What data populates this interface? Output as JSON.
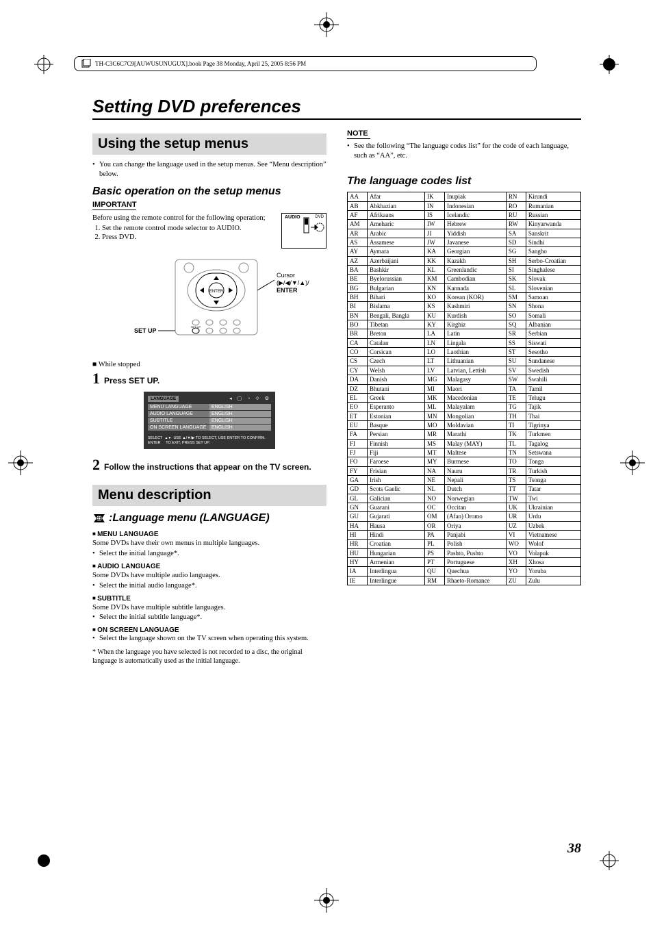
{
  "header_filename": "TH-C3C6C7C9[AUWUSUNUGUX].book  Page 38  Monday, April 25, 2005  8:56 PM",
  "page_title": "Setting DVD preferences",
  "page_number": "38",
  "left": {
    "section1_title": "Using the setup menus",
    "intro_bullet": "You can change the language used in the setup menus. See “Menu description” below.",
    "subhead_basic": "Basic operation on the setup menus",
    "important_label": "IMPORTANT",
    "before_text": "Before using the remote control for the following operation;",
    "num1": "Set the remote control mode selector to AUDIO.",
    "num2": "Press DVD.",
    "remote": {
      "audio": "AUDIO",
      "dvd": "DVD"
    },
    "diagram": {
      "setup": "SET UP",
      "cursor": "Cursor",
      "cursor_sym": "(▶/◀/▼/▲)/",
      "enter": "ENTER"
    },
    "while_stopped": "■ While stopped",
    "step1_text": "Press SET UP.",
    "menu_shot": {
      "tab": "LANGUAGE",
      "rows": [
        {
          "k": "MENU LANGUAGE",
          "v": "ENGLISH"
        },
        {
          "k": "AUDIO LANGUAGE",
          "v": "ENGLISH"
        },
        {
          "k": "SUBTITLE",
          "v": "ENGLISH"
        },
        {
          "k": "ON SCREEN LANGUAGE",
          "v": "ENGLISH"
        }
      ],
      "hint1": "SELECT",
      "hint2": "USE ▲/▼/▶ TO SELECT, USE ENTER TO CONFIRM.",
      "hint3": "ENTER",
      "hint4": "TO EXIT, PRESS SET UP."
    },
    "step2_text": "Follow the instructions that appear on the TV screen.",
    "section2_title": "Menu description",
    "lang_menu_title": ":Language menu (LANGUAGE)",
    "items": [
      {
        "h": "MENU LANGUAGE",
        "p": "Some DVDs have their own menus in multiple languages.",
        "b": "Select the initial language*."
      },
      {
        "h": "AUDIO LANGUAGE",
        "p": "Some DVDs have multiple audio languages.",
        "b": "Select the initial audio language*."
      },
      {
        "h": "SUBTITLE",
        "p": "Some DVDs have multiple subtitle languages.",
        "b": "Select the initial subtitle language*."
      },
      {
        "h": "ON SCREEN LANGUAGE",
        "p": "",
        "b": "Select the language shown on the TV screen when operating this system."
      }
    ],
    "footnote": "* When the language you have selected is not recorded to a disc, the original language is automatically used as the initial language."
  },
  "right": {
    "note_label": "NOTE",
    "note_text": "See the following “The language codes list” for the code of each language, such as “AA”, etc.",
    "list_title": "The language codes list",
    "codes": [
      [
        "AA",
        "Afar",
        "IK",
        "Inupiak",
        "RN",
        "Kirundi"
      ],
      [
        "AB",
        "Abkhazian",
        "IN",
        "Indonesian",
        "RO",
        "Rumanian"
      ],
      [
        "AF",
        "Afrikaans",
        "IS",
        "Icelandic",
        "RU",
        "Russian"
      ],
      [
        "AM",
        "Ameharic",
        "IW",
        "Hebrew",
        "RW",
        "Kinyarwanda"
      ],
      [
        "AR",
        "Arabic",
        "JI",
        "Yiddish",
        "SA",
        "Sanskrit"
      ],
      [
        "AS",
        "Assamese",
        "JW",
        "Javanese",
        "SD",
        "Sindhi"
      ],
      [
        "AY",
        "Aymara",
        "KA",
        "Georgian",
        "SG",
        "Sangho"
      ],
      [
        "AZ",
        "Azerbaijani",
        "KK",
        "Kazakh",
        "SH",
        "Serbo-Croatian"
      ],
      [
        "BA",
        "Bashkir",
        "KL",
        "Greenlandic",
        "SI",
        "Singhalese"
      ],
      [
        "BE",
        "Byelorussian",
        "KM",
        "Cambodian",
        "SK",
        "Slovak"
      ],
      [
        "BG",
        "Bulgarian",
        "KN",
        "Kannada",
        "SL",
        "Slovenian"
      ],
      [
        "BH",
        "Bihari",
        "KO",
        "Korean (KOR)",
        "SM",
        "Samoan"
      ],
      [
        "BI",
        "Bislama",
        "KS",
        "Kashmiri",
        "SN",
        "Shona"
      ],
      [
        "BN",
        "Bengali, Bangla",
        "KU",
        "Kurdish",
        "SO",
        "Somali"
      ],
      [
        "BO",
        "Tibetan",
        "KY",
        "Kirghiz",
        "SQ",
        "Albanian"
      ],
      [
        "BR",
        "Breton",
        "LA",
        "Latin",
        "SR",
        "Serbian"
      ],
      [
        "CA",
        "Catalan",
        "LN",
        "Lingala",
        "SS",
        "Siswati"
      ],
      [
        "CO",
        "Corsican",
        "LO",
        "Laothian",
        "ST",
        "Sesotho"
      ],
      [
        "CS",
        "Czech",
        "LT",
        "Lithuanian",
        "SU",
        "Sundanese"
      ],
      [
        "CY",
        "Welsh",
        "LV",
        "Latvian, Lettish",
        "SV",
        "Swedish"
      ],
      [
        "DA",
        "Danish",
        "MG",
        "Malagasy",
        "SW",
        "Swahili"
      ],
      [
        "DZ",
        "Bhutani",
        "MI",
        "Maori",
        "TA",
        "Tamil"
      ],
      [
        "EL",
        "Greek",
        "MK",
        "Macedonian",
        "TE",
        "Telugu"
      ],
      [
        "EO",
        "Esperanto",
        "ML",
        "Malayalam",
        "TG",
        "Tajik"
      ],
      [
        "ET",
        "Estonian",
        "MN",
        "Mongolian",
        "TH",
        "Thai"
      ],
      [
        "EU",
        "Basque",
        "MO",
        "Moldavian",
        "TI",
        "Tigrinya"
      ],
      [
        "FA",
        "Persian",
        "MR",
        "Marathi",
        "TK",
        "Turkmen"
      ],
      [
        "FI",
        "Finnish",
        "MS",
        "Malay (MAY)",
        "TL",
        "Tagalog"
      ],
      [
        "FJ",
        "Fiji",
        "MT",
        "Maltese",
        "TN",
        "Setswana"
      ],
      [
        "FO",
        "Faroese",
        "MY",
        "Burmese",
        "TO",
        "Tonga"
      ],
      [
        "FY",
        "Frisian",
        "NA",
        "Nauru",
        "TR",
        "Turkish"
      ],
      [
        "GA",
        "Irish",
        "NE",
        "Nepali",
        "TS",
        "Tsonga"
      ],
      [
        "GD",
        "Scots Gaelic",
        "NL",
        "Dutch",
        "TT",
        "Tatar"
      ],
      [
        "GL",
        "Galician",
        "NO",
        "Norwegian",
        "TW",
        "Twi"
      ],
      [
        "GN",
        "Guarani",
        "OC",
        "Occitan",
        "UK",
        "Ukrainian"
      ],
      [
        "GU",
        "Gujarati",
        "OM",
        "(Afan) Oromo",
        "UR",
        "Urdu"
      ],
      [
        "HA",
        "Hausa",
        "OR",
        "Oriya",
        "UZ",
        "Uzbek"
      ],
      [
        "HI",
        "Hindi",
        "PA",
        "Panjabi",
        "VI",
        "Vietnamese"
      ],
      [
        "HR",
        "Croatian",
        "PL",
        "Polish",
        "WO",
        "Wolof"
      ],
      [
        "HU",
        "Hungarian",
        "PS",
        "Pashto, Pushto",
        "VO",
        "Volapuk"
      ],
      [
        "HY",
        "Armenian",
        "PT",
        "Portuguese",
        "XH",
        "Xhosa"
      ],
      [
        "IA",
        "Interlingua",
        "QU",
        "Quechua",
        "YO",
        "Yoruba"
      ],
      [
        "IE",
        "Interlingue",
        "RM",
        "Rhaeto-Romance",
        "ZU",
        "Zulu"
      ]
    ]
  },
  "colors": {
    "section_bg": "#d8d8d8",
    "text": "#000000"
  }
}
